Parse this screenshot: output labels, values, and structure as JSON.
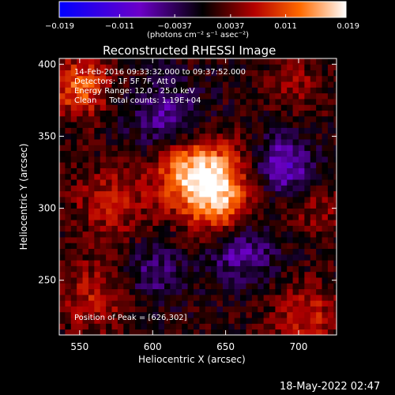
{
  "colorbar": {
    "min": -0.019,
    "max": 0.019,
    "tick_labels": [
      "−0.019",
      "−0.011",
      "−0.0037",
      "0.0037",
      "0.011",
      "0.019"
    ],
    "tick_values": [
      -0.019,
      -0.011,
      -0.0037,
      0.0037,
      0.011,
      0.019
    ],
    "units_label": "(photons cm⁻² s⁻¹ asec⁻²)",
    "colormap": [
      "#0000ff",
      "#6c00c8",
      "#000000",
      "#b40000",
      "#ff6a00",
      "#ffffff"
    ]
  },
  "chart_data": {
    "type": "heatmap",
    "title": "Reconstructed RHESSI Image",
    "xlabel": "Heliocentric X (arcsec)",
    "ylabel": "Heliocentric Y (arcsec)",
    "xlim": [
      536,
      726
    ],
    "ylim": [
      212,
      404
    ],
    "xticks": [
      550,
      600,
      650,
      700
    ],
    "yticks": [
      250,
      300,
      350,
      400
    ],
    "xtick_labels": [
      "550",
      "600",
      "650",
      "700"
    ],
    "ytick_labels": [
      "250",
      "300",
      "350",
      "400"
    ],
    "annotations": [
      "14-Feb-2016 09:33:32.000 to 09:37:52.000",
      "Detectors: 1F 5F 7F, Att 0",
      "Energy Range: 12.0 - 25.0 keV",
      "Clean     Total counts: 1.19E+04"
    ],
    "peak_label": "Position of Peak = [626,302]",
    "peak": {
      "x": 626,
      "y": 302,
      "value": 0.019
    },
    "grid": false,
    "features": [
      {
        "x": 640,
        "y": 318,
        "sigma": 18,
        "value": 0.0155
      },
      {
        "x": 620,
        "y": 330,
        "sigma": 18,
        "value": 0.008
      },
      {
        "x": 648,
        "y": 295,
        "sigma": 14,
        "value": 0.006
      },
      {
        "x": 550,
        "y": 385,
        "sigma": 14,
        "value": 0.011
      },
      {
        "x": 572,
        "y": 305,
        "sigma": 18,
        "value": 0.006
      },
      {
        "x": 560,
        "y": 240,
        "sigma": 18,
        "value": 0.006
      },
      {
        "x": 705,
        "y": 225,
        "sigma": 16,
        "value": 0.007
      },
      {
        "x": 712,
        "y": 300,
        "sigma": 14,
        "value": 0.004
      },
      {
        "x": 700,
        "y": 385,
        "sigma": 14,
        "value": 0.004
      },
      {
        "x": 610,
        "y": 360,
        "sigma": 18,
        "value": -0.008
      },
      {
        "x": 660,
        "y": 270,
        "sigma": 16,
        "value": -0.008
      },
      {
        "x": 690,
        "y": 330,
        "sigma": 14,
        "value": -0.01
      },
      {
        "x": 600,
        "y": 255,
        "sigma": 14,
        "value": -0.006
      }
    ],
    "background": 0.001,
    "pixel_size": 4
  },
  "footer": {
    "timestamp": "18-May-2022 02:47"
  }
}
